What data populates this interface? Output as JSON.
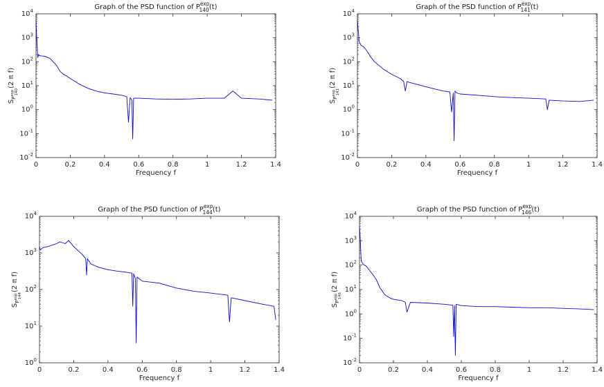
{
  "chart_data": [
    {
      "type": "line",
      "title": {
        "prefix": "Graph of the PSD function of ",
        "symbol": "P",
        "sup": "exp",
        "sub": "140",
        "suffix": "(t)"
      },
      "xlabel": "Frequency f",
      "ylabel": {
        "prefix": "S",
        "sub_base": "P",
        "sub_sup": "exp",
        "sub_sub": "140",
        "suffix": "(2 π f)"
      },
      "xlim": [
        0,
        1.4
      ],
      "ylim": [
        0.01,
        10000
      ],
      "yscale": "log",
      "xticks": [
        "0",
        "0.2",
        "0.4",
        "0.6",
        "0.8",
        "1",
        "1.2",
        "1.4"
      ],
      "yticks": [
        {
          "base": "10",
          "exp": "-2"
        },
        {
          "base": "10",
          "exp": "-1"
        },
        {
          "base": "10",
          "exp": "0"
        },
        {
          "base": "10",
          "exp": "1"
        },
        {
          "base": "10",
          "exp": "2"
        },
        {
          "base": "10",
          "exp": "3"
        },
        {
          "base": "10",
          "exp": "4"
        }
      ],
      "grid": false,
      "color": "#0a0acb",
      "series": [
        {
          "x": [
            0,
            0.005,
            0.01,
            0.015,
            0.02,
            0.03,
            0.05,
            0.08,
            0.1,
            0.12,
            0.14,
            0.16,
            0.18,
            0.2,
            0.25,
            0.3,
            0.35,
            0.4,
            0.45,
            0.5,
            0.53,
            0.54,
            0.55,
            0.56,
            0.565,
            0.57,
            0.58,
            0.6,
            0.7,
            0.8,
            0.9,
            1.0,
            1.1,
            1.15,
            1.2,
            1.3,
            1.38
          ],
          "y": [
            6000,
            800,
            150,
            200,
            180,
            175,
            170,
            140,
            100,
            70,
            40,
            30,
            25,
            20,
            12,
            8,
            6,
            5,
            4.5,
            4,
            3.5,
            0.3,
            3.2,
            2.5,
            0.06,
            3,
            3,
            3,
            2.8,
            2.7,
            2.8,
            3,
            3,
            6,
            3,
            2.8,
            2.5
          ]
        }
      ]
    },
    {
      "type": "line",
      "title": {
        "prefix": "Graph of the PSD function of ",
        "symbol": "P",
        "sup": "exp",
        "sub": "141",
        "suffix": "(t)"
      },
      "xlabel": "Frequency f",
      "ylabel": {
        "prefix": "S",
        "sub_base": "P",
        "sub_sup": "exp",
        "sub_sub": "141",
        "suffix": "(2 π f)"
      },
      "xlim": [
        0,
        1.4
      ],
      "ylim": [
        0.01,
        10000
      ],
      "yscale": "log",
      "xticks": [
        "0",
        "0.2",
        "0.4",
        "0.6",
        "0.8",
        "1",
        "1.2",
        "1.4"
      ],
      "yticks": [
        {
          "base": "10",
          "exp": "-2"
        },
        {
          "base": "10",
          "exp": "-1"
        },
        {
          "base": "10",
          "exp": "0"
        },
        {
          "base": "10",
          "exp": "1"
        },
        {
          "base": "10",
          "exp": "2"
        },
        {
          "base": "10",
          "exp": "3"
        },
        {
          "base": "10",
          "exp": "4"
        }
      ],
      "grid": false,
      "color": "#0a0acb",
      "series": [
        {
          "x": [
            0,
            0.005,
            0.01,
            0.02,
            0.04,
            0.06,
            0.08,
            0.1,
            0.15,
            0.2,
            0.25,
            0.27,
            0.28,
            0.29,
            0.3,
            0.4,
            0.5,
            0.54,
            0.55,
            0.56,
            0.565,
            0.57,
            0.58,
            0.6,
            0.7,
            0.8,
            0.9,
            1.0,
            1.1,
            1.11,
            1.12,
            1.2,
            1.3,
            1.38
          ],
          "y": [
            6000,
            2000,
            700,
            500,
            400,
            250,
            150,
            100,
            50,
            30,
            20,
            15,
            6,
            15,
            14,
            9,
            6,
            5.5,
            0.8,
            5,
            0.05,
            6,
            5,
            4.5,
            4,
            3.5,
            3.2,
            3,
            2.8,
            1,
            2.5,
            2.3,
            2.2,
            2.5
          ]
        }
      ]
    },
    {
      "type": "line",
      "title": {
        "prefix": "Graph of the PSD function of ",
        "symbol": "P",
        "sup": "exp",
        "sub": "144",
        "suffix": "(t)"
      },
      "xlabel": "Frequency f",
      "ylabel": {
        "prefix": "S",
        "sub_base": "P",
        "sub_sup": "exp",
        "sub_sub": "144",
        "suffix": "(2 π f)"
      },
      "xlim": [
        0,
        1.4
      ],
      "ylim": [
        1,
        10000
      ],
      "yscale": "log",
      "xticks": [
        "0",
        "0.2",
        "0.4",
        "0.6",
        "0.8",
        "1",
        "1.2",
        "1.4"
      ],
      "yticks": [
        {
          "base": "10",
          "exp": "0"
        },
        {
          "base": "10",
          "exp": "1"
        },
        {
          "base": "10",
          "exp": "2"
        },
        {
          "base": "10",
          "exp": "3"
        },
        {
          "base": "10",
          "exp": "4"
        }
      ],
      "grid": false,
      "color": "#0a0acb",
      "series": [
        {
          "x": [
            0,
            0.005,
            0.02,
            0.05,
            0.1,
            0.12,
            0.15,
            0.17,
            0.2,
            0.25,
            0.27,
            0.275,
            0.28,
            0.3,
            0.35,
            0.4,
            0.45,
            0.5,
            0.54,
            0.545,
            0.55,
            0.56,
            0.565,
            0.57,
            0.58,
            0.6,
            0.7,
            0.8,
            0.9,
            1.0,
            1.1,
            1.11,
            1.12,
            1.2,
            1.3,
            1.37,
            1.38
          ],
          "y": [
            1500,
            1200,
            1400,
            1500,
            1800,
            2000,
            1800,
            2200,
            1500,
            900,
            700,
            250,
            700,
            500,
            400,
            350,
            320,
            300,
            280,
            35,
            270,
            200,
            3.5,
            220,
            200,
            170,
            150,
            110,
            90,
            80,
            70,
            13,
            60,
            50,
            40,
            35,
            15
          ]
        }
      ]
    },
    {
      "type": "line",
      "title": {
        "prefix": "Graph of the PSD function of ",
        "symbol": "P",
        "sup": "exp",
        "sub": "146",
        "suffix": "(t)"
      },
      "xlabel": "Frequency f",
      "ylabel": {
        "prefix": "S",
        "sub_base": "P",
        "sub_sup": "exp",
        "sub_sub": "146",
        "suffix": "(2 π f)"
      },
      "xlim": [
        0,
        1.4
      ],
      "ylim": [
        0.01,
        10000
      ],
      "yscale": "log",
      "xticks": [
        "0",
        "0.2",
        "0.4",
        "0.6",
        "0.8",
        "1",
        "1.2",
        "1.4"
      ],
      "yticks": [
        {
          "base": "10",
          "exp": "-2"
        },
        {
          "base": "10",
          "exp": "-1"
        },
        {
          "base": "10",
          "exp": "0"
        },
        {
          "base": "10",
          "exp": "1"
        },
        {
          "base": "10",
          "exp": "2"
        },
        {
          "base": "10",
          "exp": "3"
        },
        {
          "base": "10",
          "exp": "4"
        }
      ],
      "grid": false,
      "color": "#0a0acb",
      "series": [
        {
          "x": [
            0,
            0.005,
            0.01,
            0.02,
            0.04,
            0.06,
            0.08,
            0.1,
            0.12,
            0.15,
            0.18,
            0.2,
            0.25,
            0.27,
            0.28,
            0.3,
            0.4,
            0.5,
            0.55,
            0.555,
            0.56,
            0.565,
            0.57,
            0.6,
            0.7,
            0.8,
            0.9,
            1.0,
            1.1,
            1.2,
            1.3,
            1.38
          ],
          "y": [
            4000,
            1000,
            150,
            110,
            90,
            60,
            40,
            25,
            12,
            6,
            4.5,
            4,
            3.5,
            3,
            1.2,
            3,
            2.8,
            2.5,
            2.3,
            0.12,
            2.2,
            0.02,
            2.5,
            2.2,
            2,
            2,
            1.9,
            1.8,
            1.8,
            1.7,
            1.6,
            1.5
          ]
        }
      ]
    }
  ]
}
